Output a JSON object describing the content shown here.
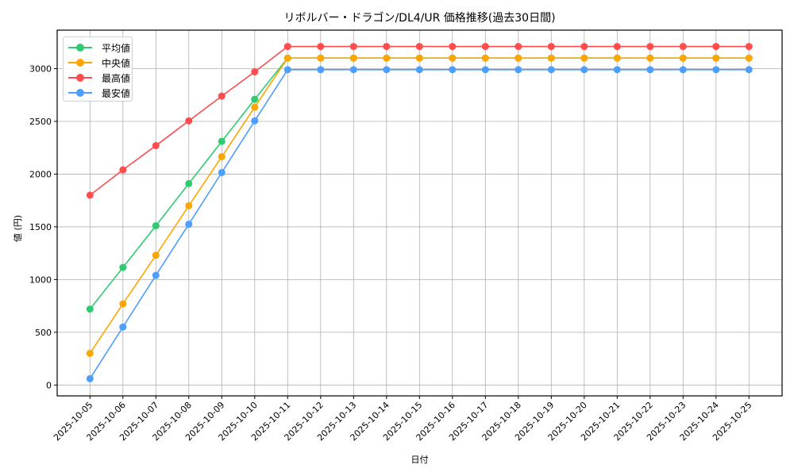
{
  "chart_data": {
    "type": "line",
    "title": "リボルバー・ドラゴン/DL4/UR 価格推移(過去30日間)",
    "xlabel": "日付",
    "ylabel": "値 (円)",
    "x": [
      "2025-10-05",
      "2025-10-06",
      "2025-10-07",
      "2025-10-08",
      "2025-10-09",
      "2025-10-10",
      "2025-10-11",
      "2025-10-12",
      "2025-10-13",
      "2025-10-14",
      "2025-10-15",
      "2025-10-16",
      "2025-10-17",
      "2025-10-18",
      "2025-10-19",
      "2025-10-20",
      "2025-10-21",
      "2025-10-22",
      "2025-10-23",
      "2025-10-24",
      "2025-10-25"
    ],
    "yticks": [
      0,
      500,
      1000,
      1500,
      2000,
      2500,
      3000
    ],
    "ylim": [
      -103,
      3365
    ],
    "grid": true,
    "legend_position": "upper left",
    "series": [
      {
        "name": "平均値",
        "color": "#2ecc71",
        "values": [
          720,
          1115,
          1510,
          1910,
          2310,
          2710,
          3100,
          3100,
          3100,
          3100,
          3100,
          3100,
          3100,
          3100,
          3100,
          3100,
          3100,
          3100,
          3100,
          3100,
          3100
        ]
      },
      {
        "name": "中央値",
        "color": "#ffa500",
        "values": [
          300,
          770,
          1230,
          1700,
          2165,
          2635,
          3100,
          3100,
          3100,
          3100,
          3100,
          3100,
          3100,
          3100,
          3100,
          3100,
          3100,
          3100,
          3100,
          3100,
          3100
        ]
      },
      {
        "name": "最高値",
        "color": "#ff4d4f",
        "values": [
          1800,
          2040,
          2270,
          2505,
          2740,
          2970,
          3210,
          3210,
          3210,
          3210,
          3210,
          3210,
          3210,
          3210,
          3210,
          3210,
          3210,
          3210,
          3210,
          3210,
          3210
        ]
      },
      {
        "name": "最安値",
        "color": "#4d9eff",
        "values": [
          60,
          550,
          1040,
          1525,
          2015,
          2505,
          2990,
          2990,
          2990,
          2990,
          2990,
          2990,
          2990,
          2990,
          2990,
          2990,
          2990,
          2990,
          2990,
          2990,
          2990
        ]
      }
    ]
  },
  "legend": {
    "items": [
      {
        "label": "平均値",
        "color": "#2ecc71"
      },
      {
        "label": "中央値",
        "color": "#ffa500"
      },
      {
        "label": "最高値",
        "color": "#ff4d4f"
      },
      {
        "label": "最安値",
        "color": "#4d9eff"
      }
    ]
  }
}
